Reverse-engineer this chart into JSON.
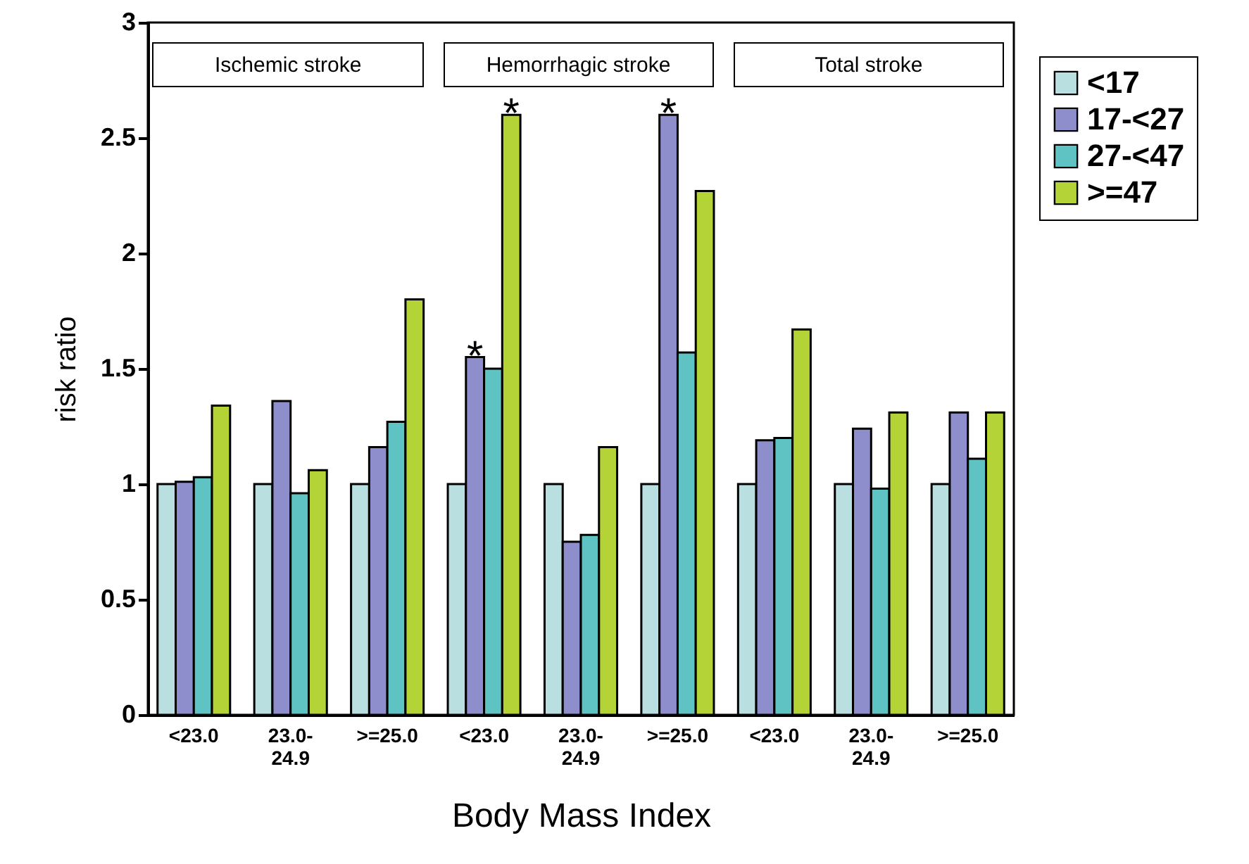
{
  "chart_data": {
    "type": "bar",
    "xlabel": "Body Mass Index",
    "ylabel": "risk ratio",
    "categories": [
      "<23.0",
      "23.0-24.9",
      ">=25.0",
      "<23.0",
      "23.0-24.9",
      ">=25.0",
      "<23.0",
      "23.0-24.9",
      ">=25.0"
    ],
    "series": [
      {
        "name": "<17",
        "color": "#b9dfe0",
        "values": [
          1,
          1,
          1,
          1,
          1,
          1,
          1,
          1,
          1
        ]
      },
      {
        "name": "17-<27",
        "color": "#8e8ecc",
        "values": [
          1.01,
          1.36,
          1.16,
          1.55,
          0.75,
          2.6,
          1.19,
          1.24,
          1.31
        ],
        "value_labels": [
          null,
          null,
          null,
          "*",
          null,
          "*",
          null,
          null,
          null
        ]
      },
      {
        "name": "27-<47",
        "color": "#5fc3c3",
        "values": [
          1.03,
          0.96,
          1.27,
          1.5,
          0.78,
          1.57,
          1.2,
          0.98,
          1.11
        ]
      },
      {
        "name": ">=47",
        "color": "#b3d336",
        "values": [
          1.34,
          1.06,
          1.8,
          2.6,
          1.16,
          2.27,
          1.67,
          1.31,
          1.31
        ],
        "value_labels": [
          null,
          null,
          null,
          "*",
          null,
          null,
          null,
          null,
          null
        ]
      }
    ],
    "ylim": [
      0,
      3
    ],
    "yticks": [
      0,
      0.5,
      1,
      1.5,
      2,
      2.5,
      3
    ],
    "annotations": [
      "Ischemic stroke",
      "Hemorrhagic stroke",
      "Total stroke"
    ],
    "legend": "top right"
  }
}
